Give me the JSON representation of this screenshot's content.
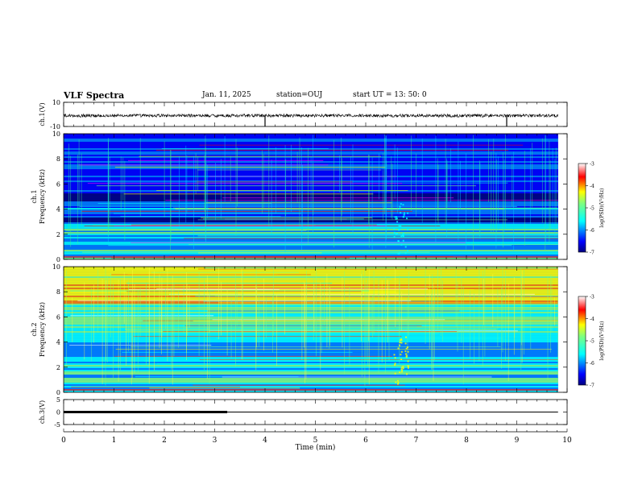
{
  "header": {
    "title": "VLF Spectra",
    "date": "Jan. 11, 2025",
    "station": "station=OUJ",
    "start_ut": "start UT =  13: 50: 0"
  },
  "chart_data": [
    {
      "type": "line",
      "ylabel": "ch.1(V)",
      "ylim": [
        -10,
        10
      ],
      "yticks": [
        "10",
        "-10"
      ],
      "xlim": [
        0,
        10
      ],
      "series_color": "#000000",
      "description_level": "waveform amplitude approximately -1 V with narrow spread; spikes near t=4.0 and t=8.8 min"
    },
    {
      "type": "heatmap",
      "ylabel": "ch.1\nFrequency (kHz)",
      "ylim": [
        0,
        10
      ],
      "yticks": [
        "0",
        "2",
        "4",
        "6",
        "8",
        "10"
      ],
      "xlim": [
        0,
        10
      ],
      "colorbar": {
        "label": "log(PSD)(V²/Hz)",
        "range": [
          -7,
          -3
        ],
        "ticks": [
          "-3",
          "-4",
          "-5",
          "-6",
          "-7"
        ]
      },
      "palette": "jet-dark"
    },
    {
      "type": "heatmap",
      "ylabel": "ch.2\nFrequency (kHz)",
      "ylim": [
        0,
        10
      ],
      "yticks": [
        "0",
        "2",
        "4",
        "6",
        "8",
        "10"
      ],
      "xlim": [
        0,
        10
      ],
      "colorbar": {
        "label": "log(PSD)(V²/Hz)",
        "range": [
          -7,
          -3
        ],
        "ticks": [
          "-3",
          "-4",
          "-5",
          "-6",
          "-7"
        ]
      },
      "palette": "jet-bright"
    },
    {
      "type": "line",
      "ylabel": "ch.3(V)",
      "ylim": [
        -5,
        5
      ],
      "yticks": [
        "5",
        "0",
        "-5"
      ],
      "xlim": [
        0,
        10
      ],
      "xlabel": "Time (min)",
      "xticks": [
        "0",
        "1",
        "2",
        "3",
        "4",
        "5",
        "6",
        "7",
        "8",
        "9",
        "10"
      ],
      "series": [
        {
          "name": "",
          "x": [
            0,
            3.25
          ],
          "y": [
            0,
            0
          ],
          "style": "thick"
        },
        {
          "name": "",
          "x": [
            3.25,
            9.82
          ],
          "y": [
            0,
            0
          ],
          "style": "thin"
        }
      ]
    }
  ],
  "colors": {
    "jet": [
      "#00007f",
      "#0000ff",
      "#007fff",
      "#00ffff",
      "#7fff7f",
      "#ffff00",
      "#ff7f00",
      "#ff0000",
      "#7f0000"
    ]
  }
}
